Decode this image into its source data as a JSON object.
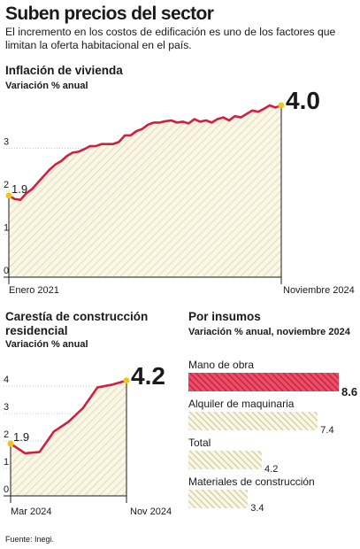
{
  "header": {
    "title": "Suben precios del sector",
    "subtitle": "El incremento en los costos de edificación es uno de los factores que limitan la oferta habitacional en el país."
  },
  "footer": {
    "source": "Fuente: Inegi."
  },
  "colors": {
    "line": "#d0203f",
    "hatch": "#d9cfa4",
    "area": "#fbf7e6",
    "marker": "#f2c417",
    "highlight": "#d0203f"
  },
  "chart_data": [
    {
      "type": "area",
      "title": "Inflación de vivienda",
      "subtitle": "Variación % anual",
      "x_start_label": "Enero 2021",
      "x_end_label": "Noviembre 2024",
      "ylim": [
        0,
        4
      ],
      "yticks": [
        "0",
        "1",
        "2",
        "3"
      ],
      "start_value_label": "1.9",
      "end_value_label": "4.0",
      "values": [
        1.9,
        1.82,
        1.8,
        1.95,
        2.05,
        2.2,
        2.35,
        2.5,
        2.62,
        2.7,
        2.82,
        2.9,
        2.92,
        2.98,
        3.05,
        3.05,
        3.1,
        3.1,
        3.1,
        3.15,
        3.3,
        3.3,
        3.4,
        3.45,
        3.55,
        3.6,
        3.6,
        3.63,
        3.65,
        3.6,
        3.62,
        3.58,
        3.68,
        3.62,
        3.65,
        3.6,
        3.68,
        3.72,
        3.65,
        3.75,
        3.72,
        3.8,
        3.88,
        3.85,
        3.92,
        4.0,
        3.95,
        4.0
      ]
    },
    {
      "type": "area",
      "title": "Carestía de construcción residencial",
      "subtitle": "Variación % anual",
      "x_start_label": "Mar 2024",
      "x_end_label": "Nov 2024",
      "ylim": [
        0,
        4.2
      ],
      "yticks": [
        "0",
        "1",
        "2",
        "3",
        "4"
      ],
      "start_value_label": "1.9",
      "end_value_label": "4.2",
      "values": [
        1.9,
        1.55,
        1.6,
        2.35,
        2.7,
        3.2,
        3.95,
        4.05,
        4.2
      ]
    },
    {
      "type": "bar",
      "title": "Por insumos",
      "subtitle": "Variación % anual, noviembre 2024",
      "categories": [
        "Mano de obra",
        "Alquiler de maquinaria",
        "Total",
        "Materiales de construcción"
      ],
      "values": [
        8.6,
        7.4,
        4.2,
        3.4
      ],
      "value_labels": [
        "8.6",
        "7.4",
        "4.2",
        "3.4"
      ],
      "highlight_index": 0,
      "xlim": [
        0,
        8.6
      ]
    }
  ]
}
